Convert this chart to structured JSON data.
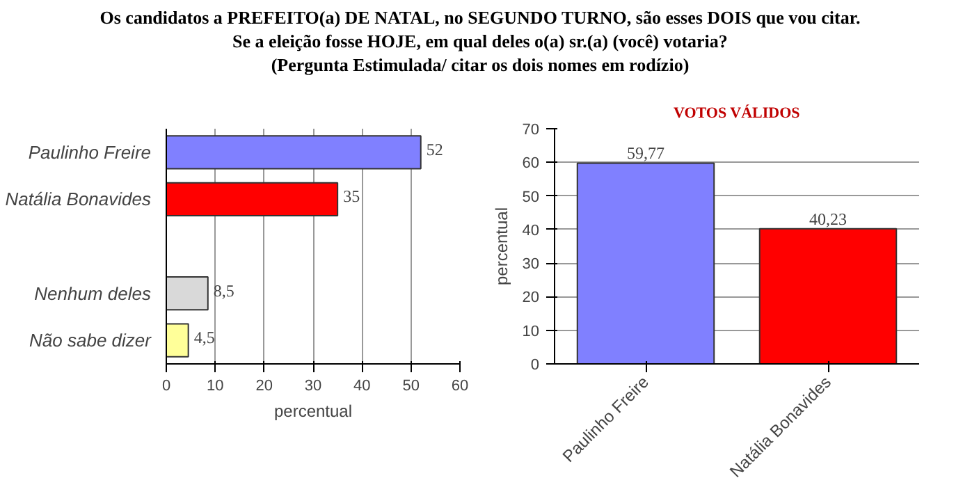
{
  "chart_data": [
    {
      "type": "bar",
      "orientation": "horizontal",
      "title": "Os candidatos a PREFEITO(a) DE NATAL, no SEGUNDO TURNO, são esses DOIS que vou citar.\nSe a eleição fosse HOJE, em qual deles o(a) sr.(a) (você) votaria?\n(Pergunta Estimulada/ citar os dois nomes em rodízio)",
      "categories": [
        "Paulinho Freire",
        "Natália Bonavides",
        null,
        "Nenhum deles",
        "Não sabe dizer"
      ],
      "values": [
        52,
        35,
        null,
        8.5,
        4.5
      ],
      "value_labels": [
        "52",
        "35",
        null,
        "8,5",
        "4,5"
      ],
      "colors": [
        "#8080ff",
        "#ff0000",
        "#d9d9d9",
        "#d9d9d9",
        "#ffff99"
      ],
      "xlim": [
        0,
        60
      ],
      "xticks": [
        0,
        10,
        20,
        30,
        40,
        50,
        60
      ],
      "xlabel": "percentual",
      "grid": "x"
    },
    {
      "type": "bar",
      "title": "VOTOS VÁLIDOS",
      "categories": [
        "Paulinho Freire",
        "Natália Bonavides"
      ],
      "values": [
        59.77,
        40.23
      ],
      "value_labels": [
        "59,77",
        "40,23"
      ],
      "colors": [
        "#8080ff",
        "#ff0000"
      ],
      "ylim": [
        0,
        70
      ],
      "yticks": [
        0,
        10,
        20,
        30,
        40,
        50,
        60,
        70
      ],
      "ylabel": "percentual",
      "grid": "y"
    }
  ]
}
